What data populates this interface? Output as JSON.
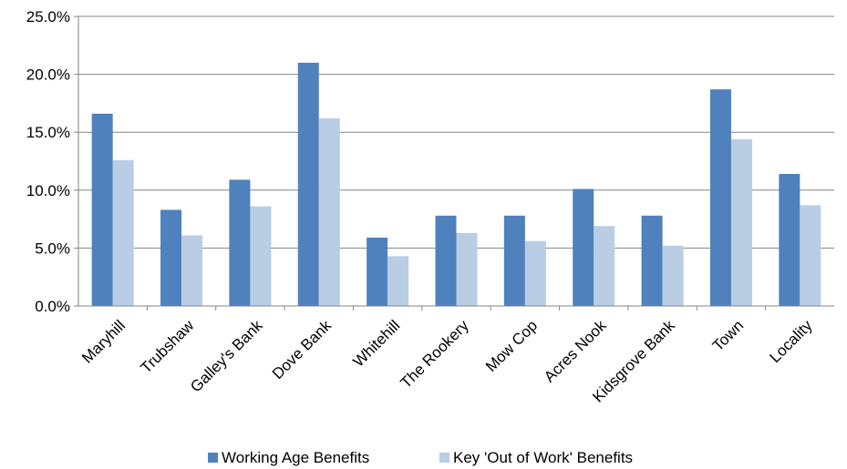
{
  "chart_data": {
    "type": "bar",
    "categories": [
      "Maryhill",
      "Trubshaw",
      "Galley's Bank",
      "Dove Bank",
      "Whitehill",
      "The Rookery",
      "Mow Cop",
      "Acres Nook",
      "Kidsgrove Bank",
      "Town",
      "Locality"
    ],
    "series": [
      {
        "name": "Working Age Benefits",
        "color": "#4F81BD",
        "values": [
          16.6,
          8.3,
          10.9,
          21.0,
          5.9,
          7.8,
          7.8,
          10.1,
          7.8,
          18.7,
          11.4
        ]
      },
      {
        "name": "Key 'Out of Work' Benefits",
        "color": "#B9CDE5",
        "values": [
          12.6,
          6.1,
          8.6,
          16.2,
          4.3,
          6.3,
          5.6,
          6.9,
          5.2,
          14.4,
          8.7
        ]
      }
    ],
    "yticks": [
      "0.0%",
      "5.0%",
      "10.0%",
      "15.0%",
      "20.0%",
      "25.0%"
    ],
    "ylim": [
      0,
      25
    ],
    "ytick_step": 5,
    "grid": true,
    "legend_position": "bottom"
  }
}
